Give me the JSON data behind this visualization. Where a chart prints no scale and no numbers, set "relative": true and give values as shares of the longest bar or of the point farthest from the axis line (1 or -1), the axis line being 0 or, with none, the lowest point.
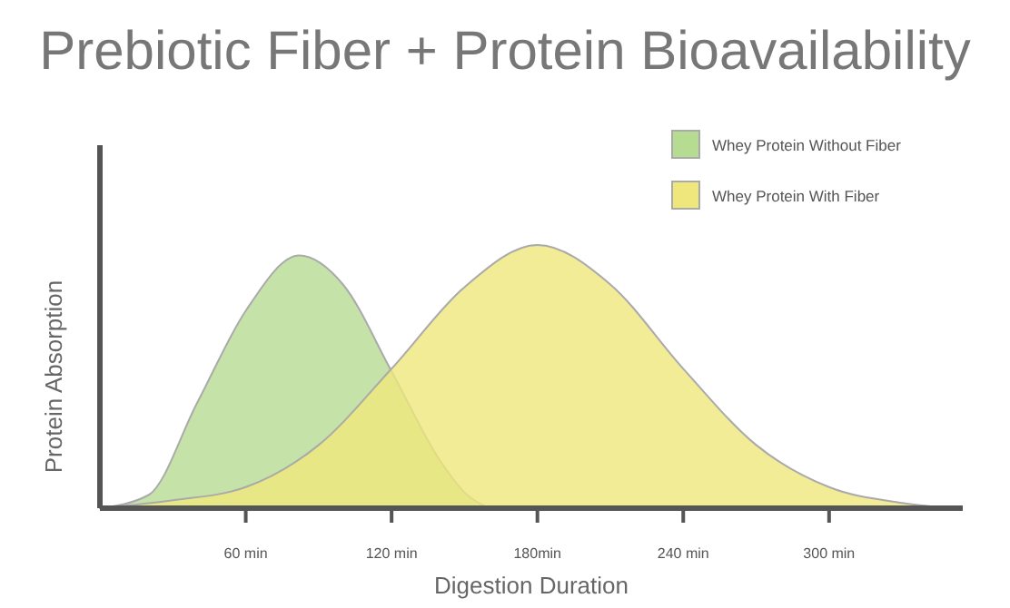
{
  "chart_data": {
    "type": "area",
    "title": "Prebiotic Fiber + Protein Bioavailability",
    "xlabel": "Digestion Duration",
    "ylabel": "Protein Absorption",
    "relative": true,
    "legend": "top right",
    "xlim": [
      0,
      355
    ],
    "xticks": [
      {
        "value": 60,
        "label": "60 min"
      },
      {
        "value": 120,
        "label": "120 min"
      },
      {
        "value": 180,
        "label": "180min"
      },
      {
        "value": 240,
        "label": "240 min"
      },
      {
        "value": 300,
        "label": "300 min"
      }
    ],
    "series": [
      {
        "name": "Whey Protein Without Fiber",
        "color": "#b6dc92",
        "x": [
          0,
          20,
          40,
          60,
          82,
          100,
          120,
          140,
          150,
          160
        ],
        "values": [
          0,
          0.05,
          0.4,
          0.75,
          0.96,
          0.85,
          0.52,
          0.18,
          0.06,
          0
        ]
      },
      {
        "name": "Whey Protein With Fiber",
        "color": "#efe77c",
        "x": [
          0,
          30,
          60,
          90,
          120,
          150,
          180,
          210,
          240,
          270,
          300,
          330,
          350
        ],
        "values": [
          0,
          0.03,
          0.08,
          0.24,
          0.53,
          0.84,
          1,
          0.85,
          0.53,
          0.24,
          0.08,
          0.02,
          0
        ]
      }
    ]
  }
}
